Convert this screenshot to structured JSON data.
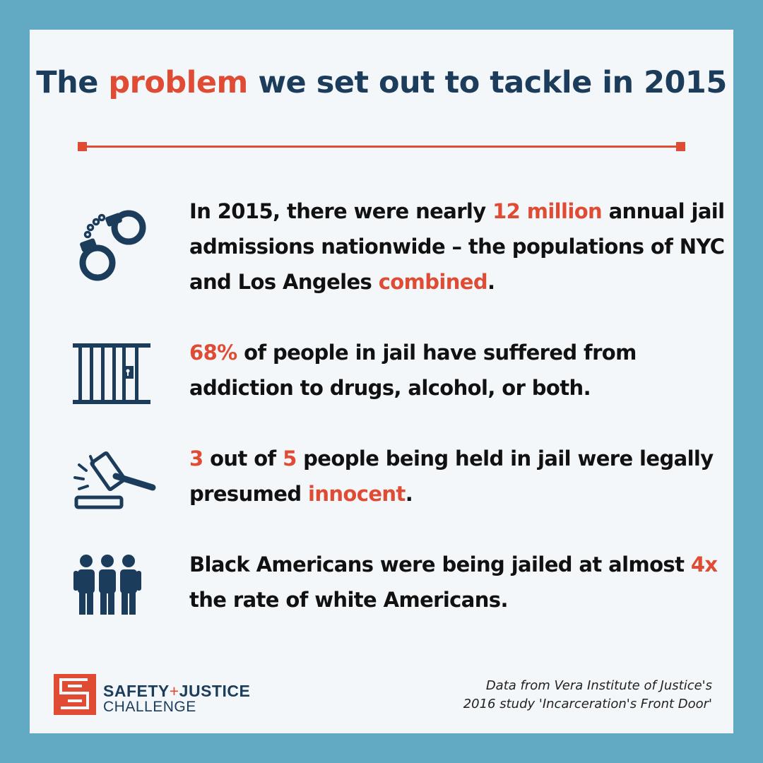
{
  "title": {
    "part1": "The ",
    "highlight": "problem",
    "part2": " we set out to tackle in 2015"
  },
  "items": [
    {
      "icon": "handcuffs-icon",
      "t1": "In 2015,  there were nearly ",
      "h1": "12 million",
      "t2": " annual jail admissions nationwide – the populations of NYC and Los Angeles ",
      "h2": "combined",
      "t3": "."
    },
    {
      "icon": "jail-bars-icon",
      "h1": "68%",
      "t1": " of people in jail have suffered from addiction to drugs, alcohol, or both."
    },
    {
      "icon": "gavel-icon",
      "h1": "3",
      "t1": " out of ",
      "h2": "5",
      "t2": " people being held in jail were legally presumed ",
      "h3": "innocent",
      "t3": "."
    },
    {
      "icon": "people-group-icon",
      "t1": "Black Americans were being jailed at almost ",
      "h1": "4x",
      "t2": " the rate of white Americans."
    }
  ],
  "logo": {
    "word1": "SAFETY",
    "plus": "+",
    "word2": "JUSTICE",
    "line2": "CHALLENGE"
  },
  "source": {
    "line1": "Data from Vera Institute of Justice's",
    "line2": "2016 study 'Incarceration's Front Door'"
  },
  "colors": {
    "background": "#62a9c3",
    "card": "#f3f7fa",
    "navy": "#1c3c5c",
    "accent": "#e04b34",
    "text": "#111111"
  }
}
